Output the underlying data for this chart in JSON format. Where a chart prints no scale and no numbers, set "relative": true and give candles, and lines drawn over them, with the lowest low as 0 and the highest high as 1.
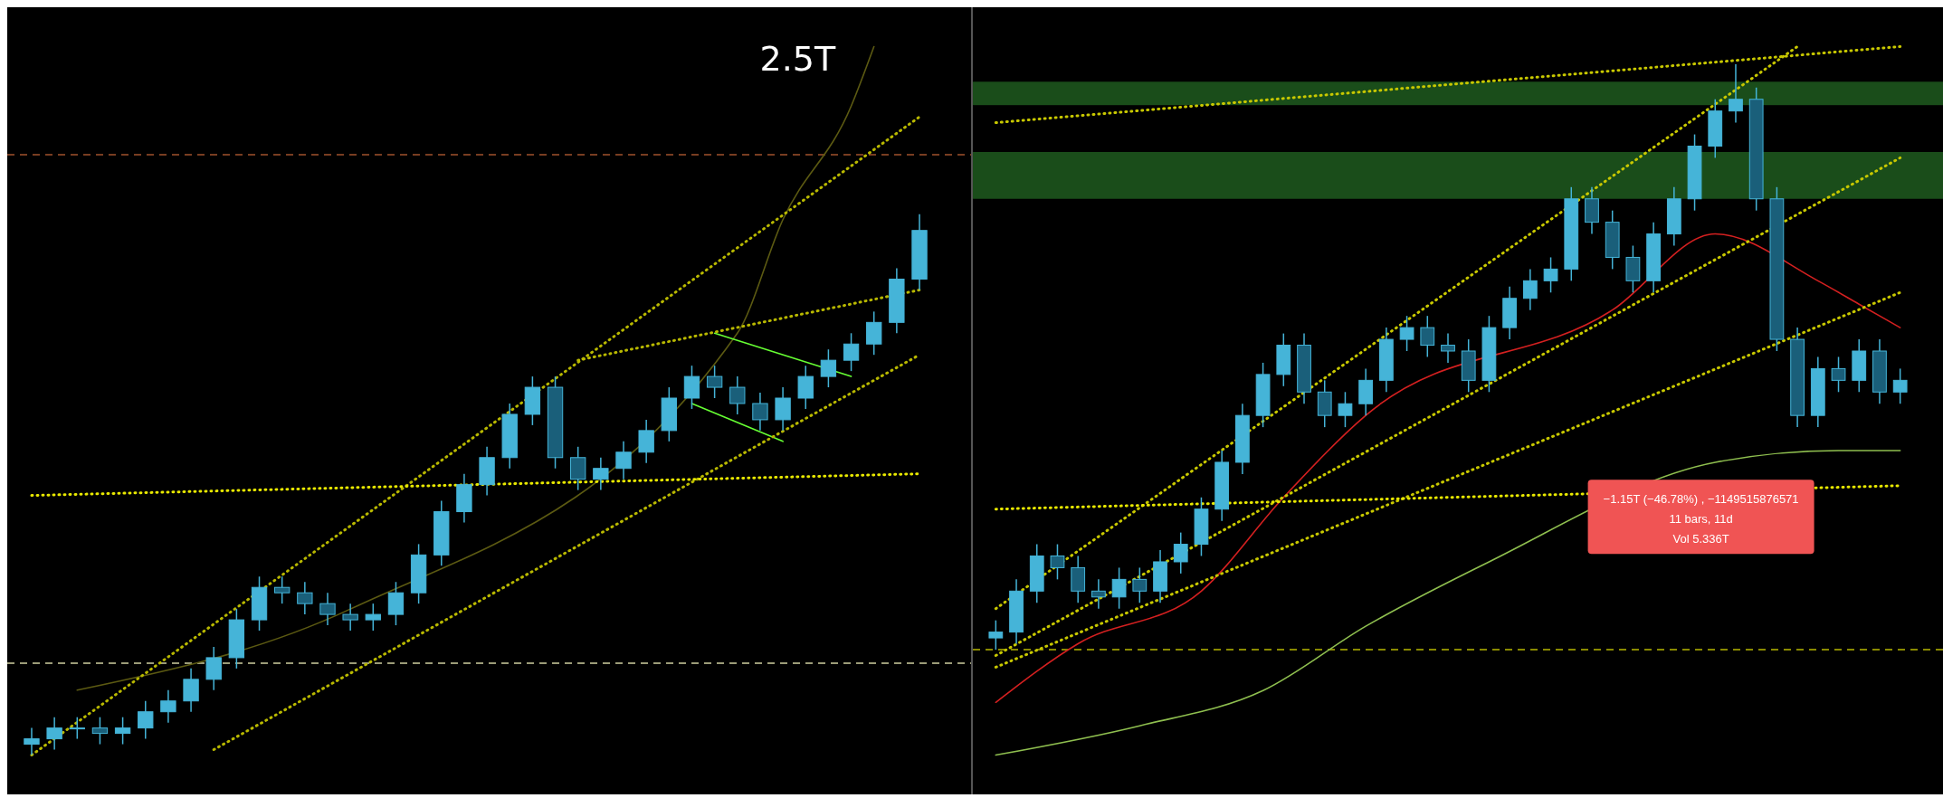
{
  "chart_data": [
    {
      "type": "candlestick",
      "relative": true,
      "color": "#45b4d8",
      "categories": [
        null,
        null,
        null,
        null,
        null,
        null,
        null,
        null,
        null,
        null,
        null,
        null,
        null,
        null,
        null,
        null,
        null,
        null,
        null,
        null,
        null,
        null,
        null,
        null,
        null,
        null,
        null,
        null,
        null,
        null,
        null,
        null,
        null,
        null,
        null,
        null,
        null,
        null,
        null,
        null
      ],
      "ohlc": [
        [
          0.02,
          0.05,
          0.0,
          0.03
        ],
        [
          0.03,
          0.07,
          0.01,
          0.05
        ],
        [
          0.05,
          0.07,
          0.03,
          0.05
        ],
        [
          0.05,
          0.07,
          0.02,
          0.04
        ],
        [
          0.04,
          0.07,
          0.02,
          0.05
        ],
        [
          0.05,
          0.1,
          0.03,
          0.08
        ],
        [
          0.08,
          0.12,
          0.06,
          0.1
        ],
        [
          0.1,
          0.16,
          0.08,
          0.14
        ],
        [
          0.14,
          0.2,
          0.12,
          0.18
        ],
        [
          0.18,
          0.27,
          0.16,
          0.25
        ],
        [
          0.25,
          0.33,
          0.23,
          0.31
        ],
        [
          0.31,
          0.33,
          0.28,
          0.3
        ],
        [
          0.3,
          0.32,
          0.26,
          0.28
        ],
        [
          0.28,
          0.3,
          0.24,
          0.26
        ],
        [
          0.26,
          0.28,
          0.23,
          0.25
        ],
        [
          0.25,
          0.28,
          0.23,
          0.26
        ],
        [
          0.26,
          0.32,
          0.24,
          0.3
        ],
        [
          0.3,
          0.39,
          0.28,
          0.37
        ],
        [
          0.37,
          0.47,
          0.35,
          0.45
        ],
        [
          0.45,
          0.52,
          0.43,
          0.5
        ],
        [
          0.5,
          0.57,
          0.48,
          0.55
        ],
        [
          0.55,
          0.65,
          0.53,
          0.63
        ],
        [
          0.63,
          0.7,
          0.61,
          0.68
        ],
        [
          0.68,
          0.7,
          0.53,
          0.55
        ],
        [
          0.55,
          0.57,
          0.49,
          0.51
        ],
        [
          0.51,
          0.55,
          0.49,
          0.53
        ],
        [
          0.53,
          0.58,
          0.51,
          0.56
        ],
        [
          0.56,
          0.62,
          0.54,
          0.6
        ],
        [
          0.6,
          0.68,
          0.58,
          0.66
        ],
        [
          0.66,
          0.72,
          0.64,
          0.7
        ],
        [
          0.7,
          0.72,
          0.66,
          0.68
        ],
        [
          0.68,
          0.7,
          0.63,
          0.65
        ],
        [
          0.65,
          0.67,
          0.6,
          0.62
        ],
        [
          0.62,
          0.68,
          0.6,
          0.66
        ],
        [
          0.66,
          0.72,
          0.64,
          0.7
        ],
        [
          0.7,
          0.75,
          0.68,
          0.73
        ],
        [
          0.73,
          0.78,
          0.71,
          0.76
        ],
        [
          0.76,
          0.82,
          0.74,
          0.8
        ],
        [
          0.8,
          0.9,
          0.78,
          0.88
        ],
        [
          0.88,
          1.0,
          0.86,
          0.97
        ]
      ],
      "series": [
        {
          "type": "line",
          "color": "#5c5a12",
          "values": [
            null,
            null,
            0.12,
            null,
            null,
            null,
            null,
            null,
            null,
            null,
            null,
            null,
            null,
            null,
            0.27,
            null,
            null,
            null,
            null,
            null,
            null,
            null,
            null,
            null,
            null,
            null,
            null,
            null,
            null,
            null,
            null,
            0.78,
            null,
            0.99,
            null,
            null,
            1.2,
            1.31,
            null,
            null
          ]
        },
        {
          "type": "line",
          "color": "#b8b800",
          "line_style": "dotted",
          "values": [
            0,
            null,
            null,
            null,
            null,
            null,
            null,
            null,
            null,
            null,
            null,
            null,
            null,
            null,
            null,
            null,
            null,
            null,
            null,
            null,
            null,
            null,
            null,
            null,
            null,
            null,
            null,
            null,
            null,
            null,
            null,
            null,
            null,
            null,
            null,
            null,
            null,
            null,
            null,
            1.18
          ]
        },
        {
          "type": "line",
          "color": "#b8b800",
          "line_style": "dotted",
          "values": [
            null,
            null,
            null,
            null,
            null,
            null,
            null,
            null,
            0.01,
            null,
            null,
            null,
            null,
            null,
            null,
            null,
            null,
            null,
            null,
            null,
            null,
            null,
            null,
            null,
            null,
            null,
            null,
            null,
            null,
            null,
            null,
            null,
            null,
            null,
            null,
            null,
            null,
            null,
            null,
            0.74
          ]
        },
        {
          "type": "line",
          "color": "#b8b800",
          "line_style": "dotted",
          "values": [
            null,
            null,
            null,
            null,
            null,
            null,
            null,
            null,
            null,
            null,
            null,
            null,
            null,
            null,
            null,
            null,
            null,
            null,
            null,
            null,
            null,
            null,
            null,
            null,
            0.73,
            null,
            null,
            null,
            null,
            null,
            null,
            null,
            null,
            null,
            null,
            null,
            null,
            null,
            null,
            0.86
          ]
        },
        {
          "type": "line",
          "color": "#e8e800",
          "line_style": "dotted",
          "values": [
            0.48,
            null,
            null,
            null,
            null,
            null,
            null,
            null,
            null,
            null,
            null,
            null,
            null,
            null,
            null,
            null,
            null,
            null,
            null,
            null,
            null,
            null,
            null,
            null,
            null,
            null,
            null,
            null,
            null,
            null,
            null,
            null,
            null,
            null,
            null,
            null,
            null,
            null,
            null,
            0.52
          ]
        },
        {
          "type": "line",
          "color": "#66ff33",
          "values": [
            null,
            null,
            null,
            null,
            null,
            null,
            null,
            null,
            null,
            null,
            null,
            null,
            null,
            null,
            null,
            null,
            null,
            null,
            null,
            null,
            null,
            null,
            null,
            null,
            null,
            null,
            null,
            null,
            null,
            null,
            0.78,
            null,
            null,
            null,
            null,
            null,
            0.7,
            null,
            null,
            null
          ]
        },
        {
          "type": "line",
          "color": "#66ff33",
          "values": [
            null,
            null,
            null,
            null,
            null,
            null,
            null,
            null,
            null,
            null,
            null,
            null,
            null,
            null,
            null,
            null,
            null,
            null,
            null,
            null,
            null,
            null,
            null,
            null,
            null,
            null,
            null,
            null,
            null,
            0.65,
            null,
            null,
            null,
            0.58,
            null,
            null,
            null,
            null,
            null,
            null
          ]
        }
      ],
      "ref_lines": [
        {
          "axis": "y",
          "value": 0.17,
          "color": "#cfcfa0",
          "line_style": "dashed"
        },
        {
          "axis": "y",
          "value": 1.11,
          "color": "#a0522d",
          "line_style": "dashed"
        }
      ],
      "annotations": [
        "2.5T"
      ]
    },
    {
      "type": "candlestick",
      "relative": true,
      "color": "#45b4d8",
      "categories": [
        null,
        null,
        null,
        null,
        null,
        null,
        null,
        null,
        null,
        null,
        null,
        null,
        null,
        null,
        null,
        null,
        null,
        null,
        null,
        null,
        null,
        null,
        null,
        null,
        null,
        null,
        null,
        null,
        null,
        null,
        null,
        null,
        null,
        null,
        null,
        null,
        null,
        null,
        null,
        null,
        null,
        null,
        null,
        null,
        null
      ],
      "ohlc": [
        [
          0.02,
          0.05,
          0.0,
          0.03
        ],
        [
          0.03,
          0.12,
          0.01,
          0.1
        ],
        [
          0.1,
          0.18,
          0.08,
          0.16
        ],
        [
          0.16,
          0.18,
          0.12,
          0.14
        ],
        [
          0.14,
          0.16,
          0.08,
          0.1
        ],
        [
          0.1,
          0.12,
          0.07,
          0.09
        ],
        [
          0.09,
          0.14,
          0.07,
          0.12
        ],
        [
          0.12,
          0.14,
          0.08,
          0.1
        ],
        [
          0.1,
          0.17,
          0.08,
          0.15
        ],
        [
          0.15,
          0.2,
          0.13,
          0.18
        ],
        [
          0.18,
          0.26,
          0.16,
          0.24
        ],
        [
          0.24,
          0.34,
          0.22,
          0.32
        ],
        [
          0.32,
          0.42,
          0.3,
          0.4
        ],
        [
          0.4,
          0.49,
          0.38,
          0.47
        ],
        [
          0.47,
          0.54,
          0.45,
          0.52
        ],
        [
          0.52,
          0.54,
          0.42,
          0.44
        ],
        [
          0.44,
          0.46,
          0.38,
          0.4
        ],
        [
          0.4,
          0.44,
          0.38,
          0.42
        ],
        [
          0.42,
          0.48,
          0.4,
          0.46
        ],
        [
          0.46,
          0.55,
          0.44,
          0.53
        ],
        [
          0.53,
          0.57,
          0.51,
          0.55
        ],
        [
          0.55,
          0.57,
          0.5,
          0.52
        ],
        [
          0.52,
          0.54,
          0.49,
          0.51
        ],
        [
          0.51,
          0.53,
          0.44,
          0.46
        ],
        [
          0.46,
          0.57,
          0.44,
          0.55
        ],
        [
          0.55,
          0.62,
          0.53,
          0.6
        ],
        [
          0.6,
          0.65,
          0.58,
          0.63
        ],
        [
          0.63,
          0.67,
          0.61,
          0.65
        ],
        [
          0.65,
          0.79,
          0.63,
          0.77
        ],
        [
          0.77,
          0.79,
          0.71,
          0.73
        ],
        [
          0.73,
          0.75,
          0.65,
          0.67
        ],
        [
          0.67,
          0.69,
          0.61,
          0.63
        ],
        [
          0.63,
          0.73,
          0.61,
          0.71
        ],
        [
          0.71,
          0.79,
          0.69,
          0.77
        ],
        [
          0.77,
          0.88,
          0.75,
          0.86
        ],
        [
          0.86,
          0.94,
          0.84,
          0.92
        ],
        [
          0.92,
          1.0,
          0.9,
          0.94
        ],
        [
          0.94,
          0.96,
          0.75,
          0.77
        ],
        [
          0.77,
          0.79,
          0.51,
          0.53
        ],
        [
          0.53,
          0.55,
          0.38,
          0.4
        ],
        [
          0.4,
          0.5,
          0.38,
          0.48
        ],
        [
          0.48,
          0.5,
          0.44,
          0.46
        ],
        [
          0.46,
          0.53,
          0.44,
          0.51
        ],
        [
          0.51,
          0.53,
          0.42,
          0.44
        ],
        [
          0.44,
          0.48,
          0.42,
          0.46
        ]
      ],
      "series": [
        {
          "type": "line",
          "color": "#d42020",
          "values": [
            -0.09,
            null,
            null,
            null,
            0.01,
            null,
            null,
            null,
            null,
            null,
            0.1,
            null,
            null,
            null,
            0.26,
            null,
            null,
            null,
            0.4,
            null,
            null,
            null,
            null,
            null,
            null,
            null,
            null,
            null,
            null,
            null,
            0.58,
            null,
            null,
            null,
            null,
            0.71,
            null,
            null,
            null,
            null,
            0.63,
            null,
            0.59,
            null,
            0.55
          ]
        },
        {
          "type": "line",
          "color": "#8fbf4f",
          "values": [
            -0.18,
            null,
            null,
            null,
            null,
            null,
            null,
            -0.13,
            null,
            null,
            null,
            null,
            null,
            -0.07,
            null,
            null,
            null,
            null,
            0.04,
            null,
            null,
            null,
            null,
            null,
            0.15,
            null,
            null,
            null,
            null,
            null,
            null,
            null,
            null,
            null,
            null,
            0.32,
            null,
            null,
            null,
            null,
            null,
            0.34,
            null,
            null,
            0.34
          ]
        },
        {
          "type": "line",
          "color": "#c8c800",
          "line_style": "dotted",
          "values": [
            0.9,
            null,
            null,
            null,
            null,
            null,
            null,
            null,
            null,
            null,
            null,
            null,
            null,
            null,
            null,
            null,
            null,
            null,
            null,
            null,
            null,
            null,
            null,
            null,
            null,
            null,
            null,
            null,
            null,
            null,
            null,
            null,
            null,
            null,
            null,
            null,
            null,
            null,
            null,
            null,
            null,
            null,
            null,
            null,
            1.03
          ]
        },
        {
          "type": "line",
          "color": "#c8c800",
          "line_style": "dotted",
          "values": [
            -0.03,
            null,
            null,
            null,
            null,
            null,
            null,
            null,
            null,
            null,
            null,
            null,
            null,
            null,
            null,
            null,
            null,
            null,
            null,
            null,
            null,
            null,
            null,
            null,
            null,
            null,
            null,
            null,
            null,
            null,
            null,
            null,
            null,
            null,
            null,
            null,
            null,
            null,
            null,
            null,
            null,
            null,
            null,
            null,
            0.61
          ]
        },
        {
          "type": "line",
          "color": "#c8c800",
          "line_style": "dotted",
          "values": [
            -0.01,
            null,
            null,
            null,
            null,
            null,
            null,
            null,
            null,
            null,
            null,
            null,
            null,
            null,
            null,
            null,
            null,
            null,
            null,
            null,
            null,
            null,
            null,
            null,
            null,
            null,
            null,
            null,
            null,
            null,
            null,
            null,
            null,
            null,
            null,
            null,
            null,
            null,
            null,
            null,
            null,
            null,
            null,
            null,
            0.84
          ]
        },
        {
          "type": "line",
          "color": "#c8c800",
          "line_style": "dotted",
          "values": [
            0.07,
            null,
            null,
            null,
            null,
            null,
            null,
            null,
            null,
            null,
            null,
            null,
            null,
            null,
            null,
            null,
            null,
            null,
            null,
            null,
            null,
            null,
            null,
            null,
            null,
            null,
            null,
            null,
            null,
            null,
            null,
            null,
            null,
            null,
            null,
            null,
            null,
            null,
            null,
            1.03,
            null,
            null,
            null,
            null,
            null
          ]
        },
        {
          "type": "line",
          "color": "#e8e800",
          "line_style": "dotted",
          "values": [
            0.24,
            null,
            null,
            null,
            null,
            null,
            null,
            null,
            null,
            null,
            null,
            null,
            null,
            null,
            null,
            null,
            null,
            null,
            null,
            null,
            null,
            null,
            null,
            null,
            null,
            null,
            null,
            null,
            null,
            null,
            null,
            null,
            null,
            null,
            null,
            null,
            null,
            null,
            null,
            null,
            null,
            null,
            null,
            null,
            0.28
          ]
        }
      ],
      "ref_lines": [
        {
          "axis": "y",
          "value": 0.0,
          "color": "#b8b800",
          "line_style": "dashed"
        }
      ],
      "bands": [
        {
          "axis": "y",
          "from": 0.77,
          "to": 0.85,
          "color": "#1e5a1e"
        },
        {
          "axis": "y",
          "from": 0.93,
          "to": 0.97,
          "color": "#1e5a1e"
        }
      ],
      "annotations": [
        "−1.15T (−46.78%) , −1149515876571",
        "11 bars, 11d",
        "Vol 5.336T"
      ]
    }
  ]
}
